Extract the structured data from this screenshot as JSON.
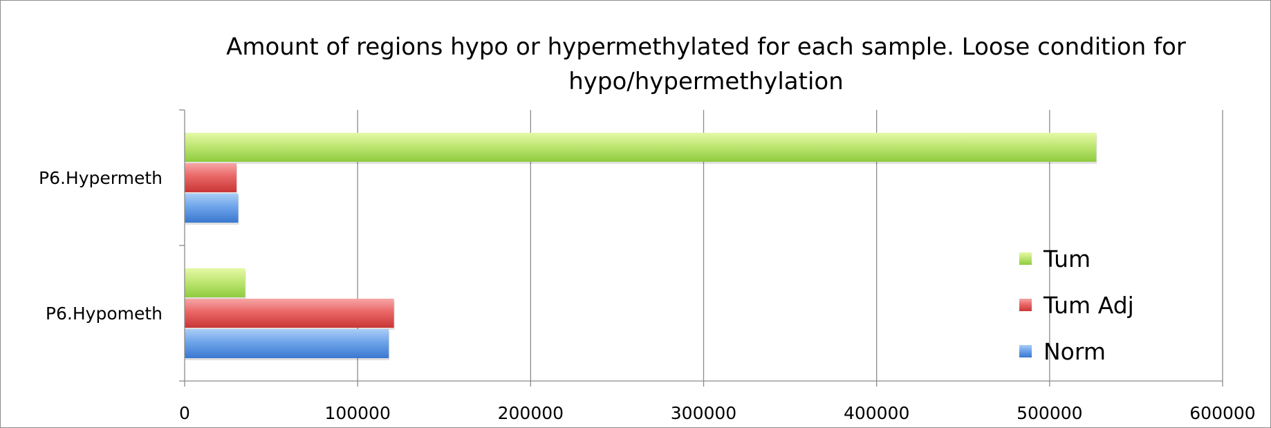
{
  "chart_data": {
    "type": "bar",
    "orientation": "horizontal",
    "title": "Amount of regions hypo or hypermethylated for each sample. Loose condition for hypo/hypermethylation",
    "title_lines": [
      "Amount of regions hypo or hypermethylated for each sample. Loose condition for",
      "hypo/hypermethylation"
    ],
    "categories": [
      "P6.Hypermeth",
      "P6.Hypometh"
    ],
    "series": [
      {
        "name": "Tum",
        "color": "#9ed248",
        "values": [
          527000,
          35000
        ]
      },
      {
        "name": "Tum Adj",
        "color": "#dc4444",
        "values": [
          30000,
          121000
        ]
      },
      {
        "name": "Norm",
        "color": "#4a86d8",
        "values": [
          31000,
          118000
        ]
      }
    ],
    "xlim": [
      0,
      600000
    ],
    "x_ticks": [
      "0",
      "100000",
      "200000",
      "300000",
      "400000",
      "500000",
      "600000"
    ],
    "grid": true,
    "legend_position": "bottom-right",
    "xlabel": "",
    "ylabel": ""
  }
}
